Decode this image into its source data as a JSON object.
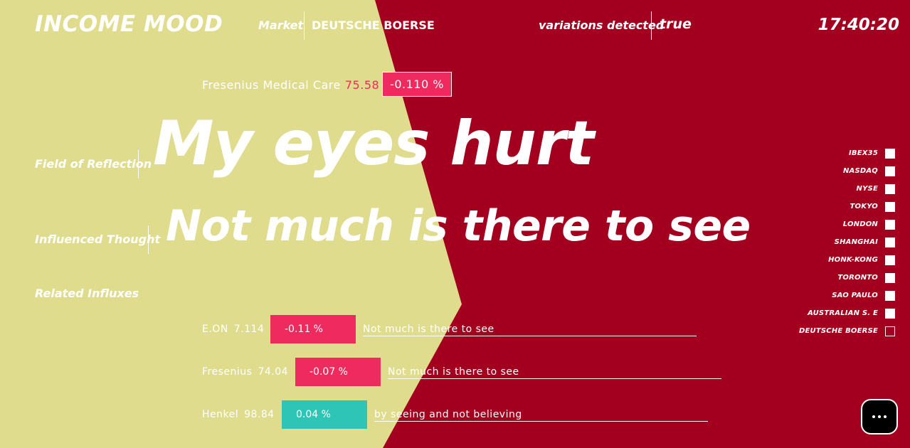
{
  "colors": {
    "background_red": "#a3001f",
    "background_khaki": "#e0dc8e",
    "negative_badge": "#ee2a5e",
    "positive_badge": "#2ec4b6"
  },
  "header": {
    "app_title": "INCOME MOOD",
    "market_label": "Market",
    "market_value": "DEUTSCHE BOERSE",
    "variations_label": "variations detected",
    "variations_value": "true",
    "clock": "17:40:20"
  },
  "ticker": {
    "name": "Fresenius Medical Care",
    "price": "75.58",
    "change": "-0.110 %"
  },
  "reflection": {
    "label": "Field of Reflection",
    "text": "My eyes hurt"
  },
  "thought": {
    "label": "Influenced Thought",
    "text": "Not much is there to see"
  },
  "influxes": {
    "label": "Related Influxes",
    "items": [
      {
        "name": "E.ON",
        "price": "7.114",
        "change": "-0.11 %",
        "text": "Not much is there to see"
      },
      {
        "name": "Fresenius",
        "price": "74.04",
        "change": "-0.07 %",
        "text": "Not much is there to see"
      },
      {
        "name": "Henkel",
        "price": "98.84",
        "change": "0.04 %",
        "text": "by seeing and not believing"
      }
    ]
  },
  "markets": [
    {
      "label": "IBEX35",
      "selected": true
    },
    {
      "label": "NASDAQ",
      "selected": true
    },
    {
      "label": "NYSE",
      "selected": true
    },
    {
      "label": "TOKYO",
      "selected": true
    },
    {
      "label": "LONDON",
      "selected": true
    },
    {
      "label": "SHANGHAI",
      "selected": true
    },
    {
      "label": "HONK-KONG",
      "selected": true
    },
    {
      "label": "TORONTO",
      "selected": true
    },
    {
      "label": "SAO PAULO",
      "selected": true
    },
    {
      "label": "AUSTRALIAN S. E",
      "selected": true
    },
    {
      "label": "DEUTSCHE BOERSE",
      "selected": false
    }
  ],
  "more_button": {
    "icon": "more-icon"
  }
}
